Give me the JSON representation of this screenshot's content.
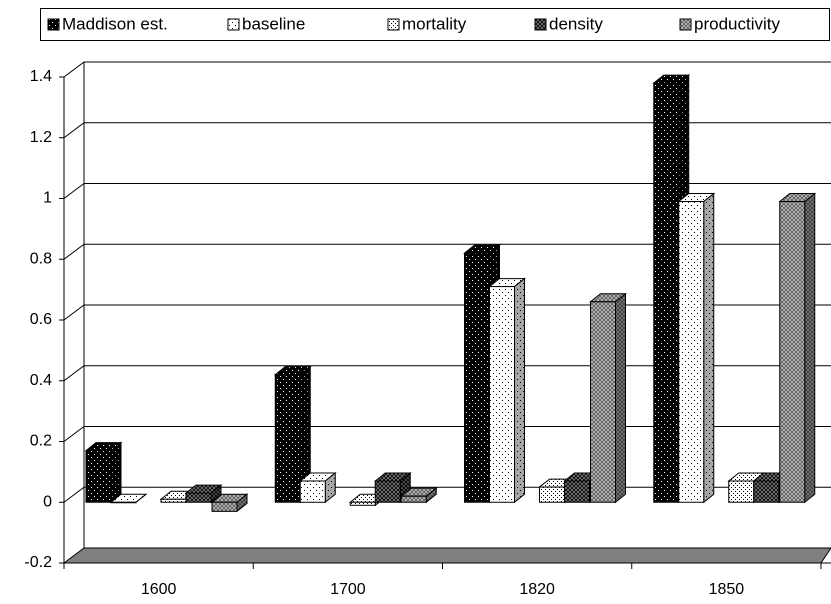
{
  "chart_data": {
    "type": "bar3d",
    "categories": [
      "1600",
      "1700",
      "1820",
      "1850"
    ],
    "series": [
      {
        "name": "Maddison est.",
        "color": "#000000",
        "values": [
          0.17,
          0.42,
          0.82,
          1.38
        ]
      },
      {
        "name": "baseline",
        "color": "#ffffff",
        "values": [
          0.0,
          0.07,
          0.71,
          0.99
        ]
      },
      {
        "name": "mortality",
        "color": "#ffffff",
        "values": [
          0.01,
          -0.01,
          0.05,
          0.07
        ]
      },
      {
        "name": "density",
        "color": "#808080",
        "values": [
          0.03,
          0.07,
          0.07,
          0.07
        ]
      },
      {
        "name": "productivity",
        "color": "#c0c0c0",
        "values": [
          -0.03,
          0.02,
          0.66,
          0.99
        ]
      }
    ],
    "ylim": [
      -0.2,
      1.4
    ],
    "yticks": [
      -0.2,
      0,
      0.2,
      0.4,
      0.6,
      0.8,
      1,
      1.2,
      1.4
    ],
    "grid": true,
    "legend": "top"
  }
}
